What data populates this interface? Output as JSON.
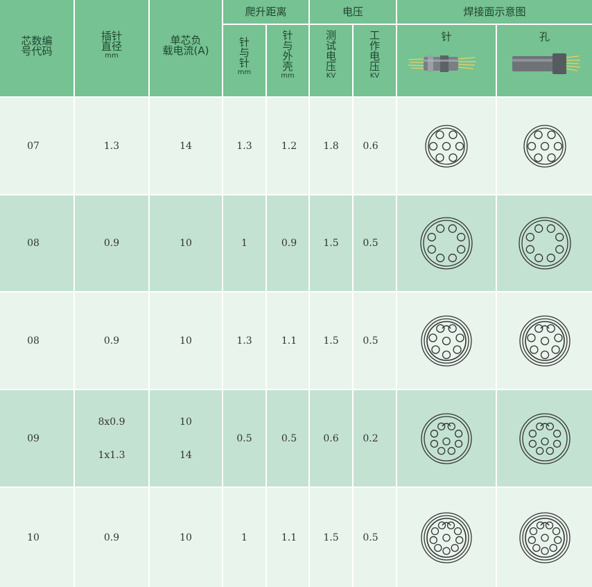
{
  "header": {
    "core_code": [
      "芯数编",
      "号代码"
    ],
    "pin_diameter": [
      "插针",
      "直径"
    ],
    "pin_diameter_unit": "mm",
    "current": [
      "单芯负",
      "载电流(A)"
    ],
    "creepage": "爬升距离",
    "voltage": "电压",
    "weld_face": "焊接面示意图",
    "pin_to_pin": [
      "针",
      "与",
      "针"
    ],
    "pin_to_pin_unit": "mm",
    "pin_to_shell": [
      "针",
      "与",
      "外",
      "壳"
    ],
    "pin_to_shell_unit": "mm",
    "test_voltage": [
      "测",
      "试",
      "电",
      "压"
    ],
    "test_voltage_unit": "KV",
    "work_voltage": [
      "工",
      "作",
      "电",
      "压"
    ],
    "work_voltage_unit": "KV",
    "pin": "针",
    "hole": "孔"
  },
  "rows": [
    {
      "code": "07",
      "diameter": [
        "1.3"
      ],
      "current": [
        "14"
      ],
      "pp": "1.3",
      "ps": "1.2",
      "test": "1.8",
      "work": "0.6",
      "bg": "#e9f4ec"
    },
    {
      "code": "08",
      "diameter": [
        "0.9"
      ],
      "current": [
        "10"
      ],
      "pp": "1",
      "ps": "0.9",
      "test": "1.5",
      "work": "0.5",
      "bg": "#c4e2d2"
    },
    {
      "code": "08",
      "diameter": [
        "0.9"
      ],
      "current": [
        "10"
      ],
      "pp": "1.3",
      "ps": "1.1",
      "test": "1.5",
      "work": "0.5",
      "bg": "#e9f4ec"
    },
    {
      "code": "09",
      "diameter": [
        "8x0.9",
        "1x1.3"
      ],
      "current": [
        "10",
        "14"
      ],
      "pp": "0.5",
      "ps": "0.5",
      "test": "0.6",
      "work": "0.2",
      "bg": "#c4e2d2"
    },
    {
      "code": "10",
      "diameter": [
        "0.9"
      ],
      "current": [
        "10"
      ],
      "pp": "1",
      "ps": "1.1",
      "test": "1.5",
      "work": "0.5",
      "bg": "#e9f4ec"
    }
  ],
  "colors": {
    "header": "#76c292",
    "row_light": "#e9f4ec",
    "row_dark": "#c4e2d2",
    "grid_line": "#ffffff"
  }
}
